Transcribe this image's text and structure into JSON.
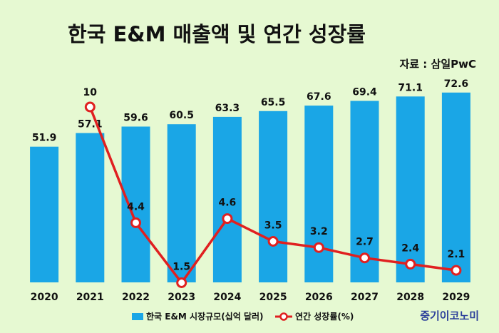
{
  "chart_data": {
    "type": "bar",
    "title": "한국 E&M 매출액 및 연간 성장률",
    "source": "자료 : 삼일PwC",
    "brand": "중기이코노미",
    "categories": [
      "2020",
      "2021",
      "2022",
      "2023",
      "2024",
      "2025",
      "2026",
      "2027",
      "2028",
      "2029"
    ],
    "series": [
      {
        "name": "한국 E&M 시장규모(십억 달러)",
        "type": "bar",
        "color": "#1aa6e6",
        "values": [
          51.9,
          57.1,
          59.6,
          60.5,
          63.3,
          65.5,
          67.6,
          69.4,
          71.1,
          72.6
        ],
        "labels": [
          "51.9",
          "57.1",
          "59.6",
          "60.5",
          "63.3",
          "65.5",
          "67.6",
          "69.4",
          "71.1",
          "72.6"
        ]
      },
      {
        "name": "연간 성장률(%)",
        "type": "line",
        "color": "#e02020",
        "values": [
          null,
          10,
          4.4,
          1.5,
          4.6,
          3.5,
          3.2,
          2.7,
          2.4,
          2.1
        ],
        "labels": [
          "",
          "10",
          "4.4",
          "1.5",
          "4.6",
          "3.5",
          "3.2",
          "2.7",
          "2.4",
          "2.1"
        ]
      }
    ],
    "bar_axis_range": [
      0,
      84
    ],
    "line_axis_range": [
      0,
      12
    ],
    "grid": false,
    "legend_position": "bottom"
  }
}
